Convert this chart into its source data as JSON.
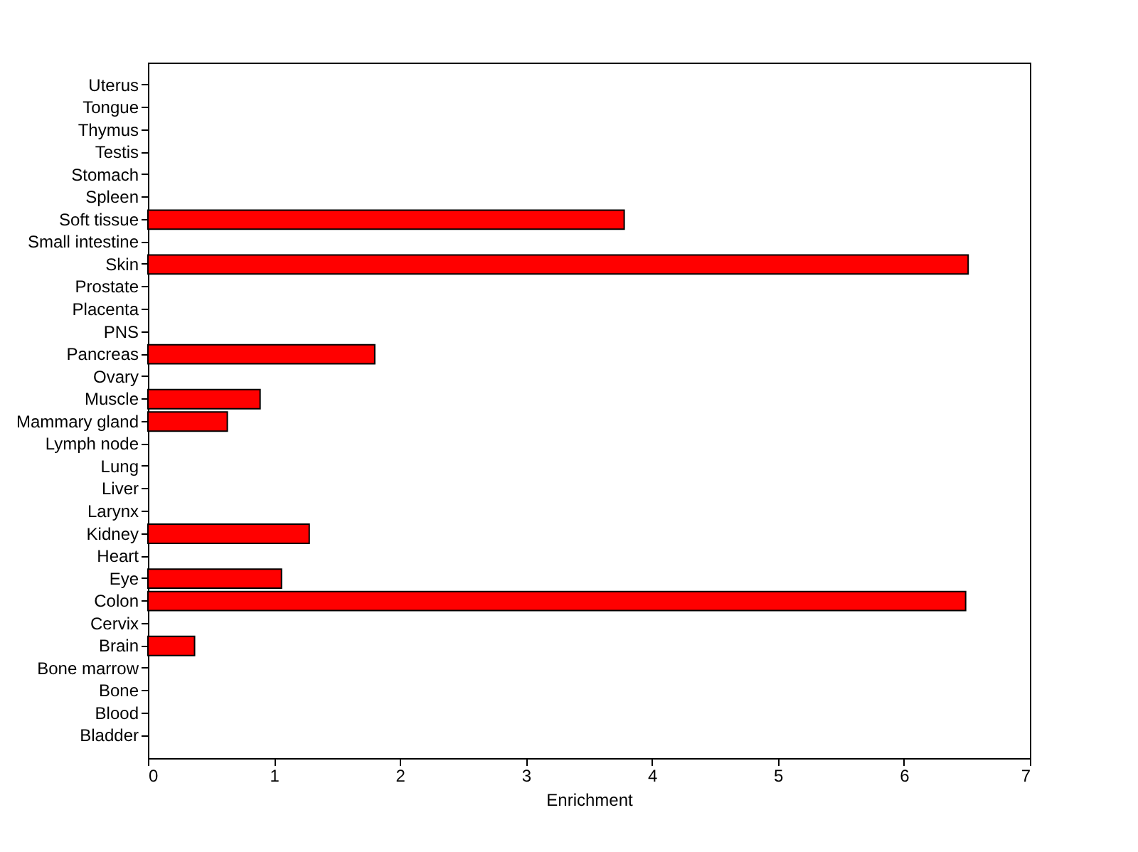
{
  "chart_data": {
    "type": "bar",
    "orientation": "horizontal",
    "xlabel": "Enrichment",
    "categories": [
      "Uterus",
      "Tongue",
      "Thymus",
      "Testis",
      "Stomach",
      "Spleen",
      "Soft tissue",
      "Small intestine",
      "Skin",
      "Prostate",
      "Placenta",
      "PNS",
      "Pancreas",
      "Ovary",
      "Muscle",
      "Mammary gland",
      "Lymph node",
      "Lung",
      "Liver",
      "Larynx",
      "Kidney",
      "Heart",
      "Eye",
      "Colon",
      "Cervix",
      "Brain",
      "Bone marrow",
      "Bone",
      "Blood",
      "Bladder"
    ],
    "values": [
      null,
      null,
      null,
      null,
      null,
      null,
      3.78,
      null,
      6.51,
      null,
      null,
      null,
      1.8,
      null,
      0.89,
      0.63,
      null,
      null,
      null,
      null,
      1.28,
      null,
      1.06,
      6.49,
      null,
      0.37,
      null,
      null,
      null,
      null
    ],
    "color": "#ff0000",
    "xlim": [
      0,
      7
    ],
    "xticks": [
      0,
      1,
      2,
      3,
      4,
      5,
      6,
      7
    ],
    "grid": false
  }
}
